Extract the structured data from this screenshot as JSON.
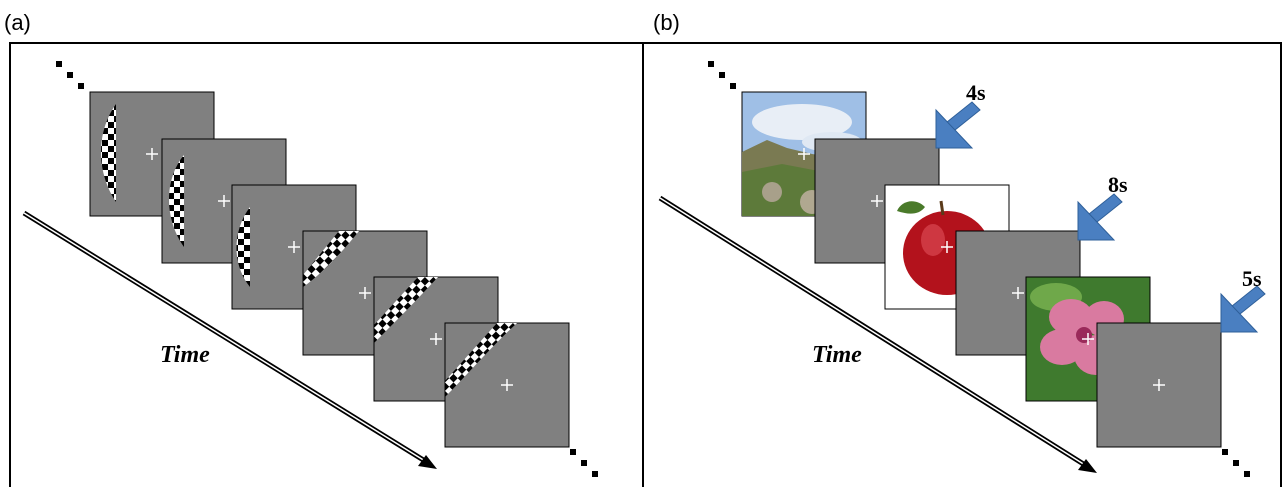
{
  "panels": [
    {
      "label": "(a)",
      "axis_label": "Time"
    },
    {
      "label": "(b)",
      "axis_label": "Time",
      "durations": [
        "4s",
        "8s",
        "5s"
      ]
    }
  ]
}
